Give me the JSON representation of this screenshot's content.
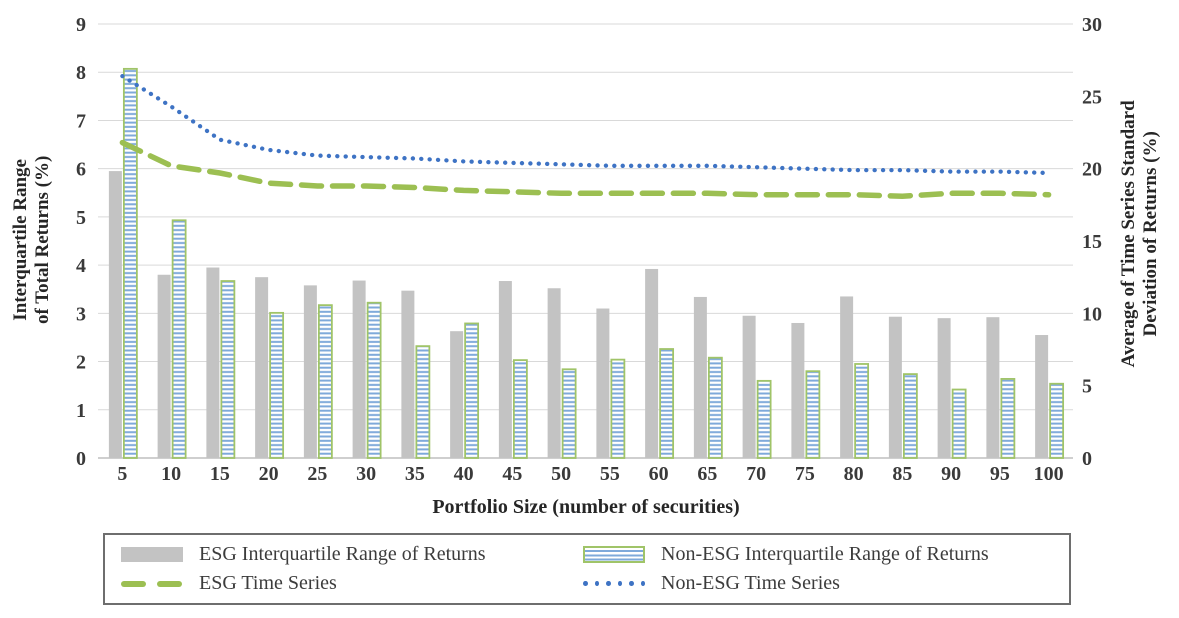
{
  "chart_data": {
    "type": "combo-bar-line",
    "title": "",
    "categories": [
      5,
      10,
      15,
      20,
      25,
      30,
      35,
      40,
      45,
      50,
      55,
      60,
      65,
      70,
      75,
      80,
      85,
      90,
      95,
      100
    ],
    "series": [
      {
        "name": "ESG Interquartile Range of Returns",
        "type": "bar",
        "axis": "left",
        "style": "solid-gray",
        "values": [
          5.95,
          3.8,
          3.95,
          3.75,
          3.58,
          3.68,
          3.47,
          2.63,
          3.67,
          3.52,
          3.1,
          3.92,
          3.34,
          2.95,
          2.8,
          3.35,
          2.93,
          2.9,
          2.92,
          2.55
        ]
      },
      {
        "name": "Non-ESG Interquartile Range of Returns",
        "type": "bar",
        "axis": "left",
        "style": "striped-blue-green",
        "values": [
          8.07,
          4.93,
          3.67,
          3.01,
          3.17,
          3.22,
          2.32,
          2.79,
          2.03,
          1.84,
          2.04,
          2.26,
          2.08,
          1.6,
          1.8,
          1.95,
          1.74,
          1.42,
          1.64,
          1.54
        ]
      },
      {
        "name": "ESG Time Series",
        "type": "line",
        "axis": "right",
        "style": "green-dashed",
        "values": [
          21.8,
          20.2,
          19.7,
          19.0,
          18.8,
          18.8,
          18.7,
          18.5,
          18.4,
          18.3,
          18.3,
          18.3,
          18.3,
          18.2,
          18.2,
          18.2,
          18.1,
          18.3,
          18.3,
          18.2
        ]
      },
      {
        "name": "Non-ESG Time Series",
        "type": "line",
        "axis": "right",
        "style": "blue-dotted",
        "values": [
          26.4,
          24.3,
          22.0,
          21.3,
          20.9,
          20.8,
          20.7,
          20.5,
          20.4,
          20.3,
          20.2,
          20.2,
          20.2,
          20.1,
          20.0,
          19.9,
          19.9,
          19.8,
          19.8,
          19.7
        ]
      }
    ],
    "axes": {
      "left": {
        "label_line1": "Interquartile Range",
        "label_line2": "of Total Returns (%)",
        "min": 0,
        "max": 9,
        "ticks": [
          9,
          8,
          7,
          6,
          5,
          4,
          3,
          2,
          1,
          0
        ]
      },
      "right": {
        "label_line1": "Average of Time Series Standard",
        "label_line2": "Deviation of Returns (%)",
        "min": 0,
        "max": 30,
        "ticks": [
          30,
          25,
          20,
          15,
          10,
          5,
          0
        ]
      },
      "x": {
        "label": "Portfolio Size (number of securities)"
      }
    },
    "legend_position": "bottom",
    "grid": true
  },
  "colors": {
    "bar_gray": "#c3c3c3",
    "bar_stripe_blue": "#7ea9da",
    "bar_stripe_border_green": "#a0c468",
    "line_green": "#9cbf52",
    "line_blue": "#3e73c4",
    "gridline": "#d9d9d9",
    "axis_line": "#bfbfbf",
    "tick_text": "#3a3a3a"
  }
}
